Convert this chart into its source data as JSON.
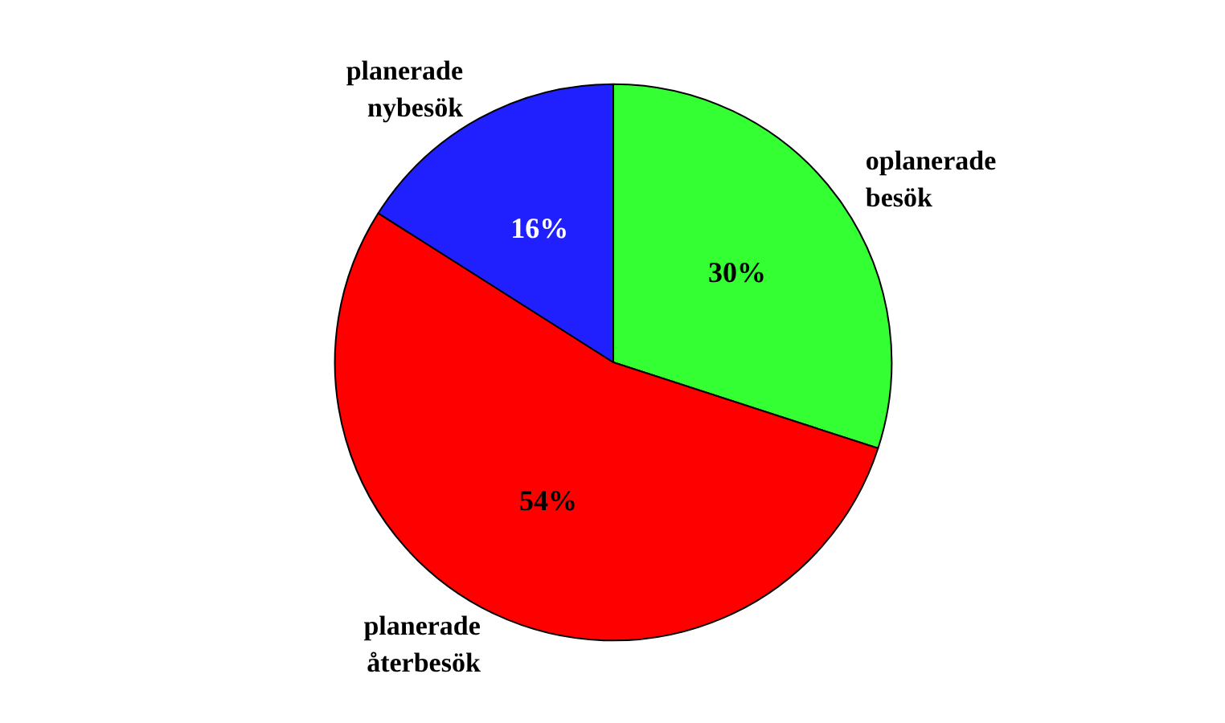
{
  "chart_data": {
    "type": "pie",
    "categories": [
      "oplanerade besök",
      "planerade återbesök",
      "planerade nybesök"
    ],
    "values": [
      30,
      54,
      16
    ],
    "colors": [
      "#33ff33",
      "#ff0000",
      "#2020ff"
    ],
    "value_labels": [
      "30%",
      "54%",
      "16%"
    ]
  }
}
